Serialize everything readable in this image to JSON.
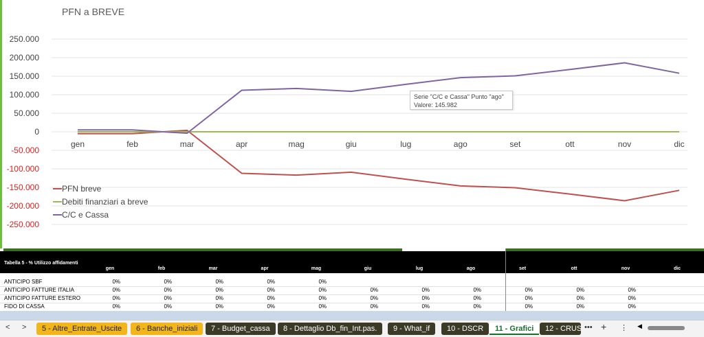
{
  "chart_data": {
    "type": "line",
    "title": "PFN a BREVE",
    "categories": [
      "gen",
      "feb",
      "mar",
      "apr",
      "mag",
      "giu",
      "lug",
      "ago",
      "set",
      "ott",
      "nov",
      "dic"
    ],
    "ylim": [
      -250000,
      250000
    ],
    "yticks": [
      "250.000",
      "200.000",
      "150.000",
      "100.000",
      "50.000",
      "0",
      "-50.000",
      "-100.000",
      "-150.000",
      "-200.000",
      "-250.000"
    ],
    "ytick_values": [
      250000,
      200000,
      150000,
      100000,
      50000,
      0,
      -50000,
      -100000,
      -150000,
      -200000,
      -250000
    ],
    "legend_position": "bottom-left",
    "series": [
      {
        "name": "PFN breve",
        "color": "#c0504d",
        "values": [
          -5000,
          -5000,
          4000,
          -112000,
          -117000,
          -109000,
          -128000,
          -145982,
          -151000,
          -168000,
          -186000,
          -158000
        ]
      },
      {
        "name": "Debiti finanziari a breve",
        "color": "#9bbb59",
        "values": [
          0,
          0,
          0,
          0,
          0,
          0,
          0,
          0,
          0,
          0,
          0,
          0
        ]
      },
      {
        "name": "C/C e Cassa",
        "color": "#8064a2",
        "values": [
          5000,
          5000,
          -4000,
          112000,
          117000,
          109000,
          128000,
          145982,
          151000,
          168000,
          186000,
          158000
        ]
      }
    ],
    "tooltip": {
      "line1": "Serie \"C/C e Cassa\" Punto \"ago\"",
      "line2": "Valore: 145.982"
    }
  },
  "table": {
    "title": "Tabella 5 - % Utilizzo affidamenti",
    "months": [
      "gen",
      "feb",
      "mar",
      "apr",
      "mag",
      "giu",
      "lug",
      "ago",
      "set",
      "ott",
      "nov",
      "dic"
    ],
    "rows": [
      {
        "label": "ANTICIPO SBF",
        "values": [
          "0%",
          "0%",
          "0%",
          "0%",
          "0%",
          "",
          "",
          "",
          "",
          "",
          "",
          ""
        ]
      },
      {
        "label": "ANTICIPO FATTURE ITALIA",
        "values": [
          "0%",
          "0%",
          "0%",
          "0%",
          "0%",
          "0%",
          "0%",
          "0%",
          "0%",
          "0%",
          "0%",
          ""
        ]
      },
      {
        "label": "ANTICIPO FATTURE ESTERO",
        "values": [
          "0%",
          "0%",
          "0%",
          "0%",
          "0%",
          "0%",
          "0%",
          "0%",
          "0%",
          "0%",
          "0%",
          ""
        ]
      },
      {
        "label": "FIDO DI CASSA",
        "values": [
          "0%",
          "0%",
          "0%",
          "0%",
          "0%",
          "0%",
          "0%",
          "0%",
          "0%",
          "0%",
          "0%",
          ""
        ]
      }
    ]
  },
  "tabs": {
    "nav_prev": "<",
    "nav_next": ">",
    "more": "•••",
    "items": [
      {
        "label": "5 - Altre_Entrate_Uscite",
        "style": "yellow"
      },
      {
        "label": "6 - Banche_iniziali",
        "style": "yellow"
      },
      {
        "label": "7 - Budget_cassa",
        "style": "dark"
      },
      {
        "label": "8 - Dettaglio Db_fin_Int.pas.",
        "style": "dark"
      },
      {
        "label": "9 - What_if",
        "style": "dark"
      },
      {
        "label": "10 - DSCR",
        "style": "dark"
      },
      {
        "label": "11 - Grafici",
        "style": "active"
      },
      {
        "label": "12 - CRUS",
        "style": "dark"
      }
    ],
    "more_right": "•••",
    "add": "+",
    "menu": "⋮"
  }
}
